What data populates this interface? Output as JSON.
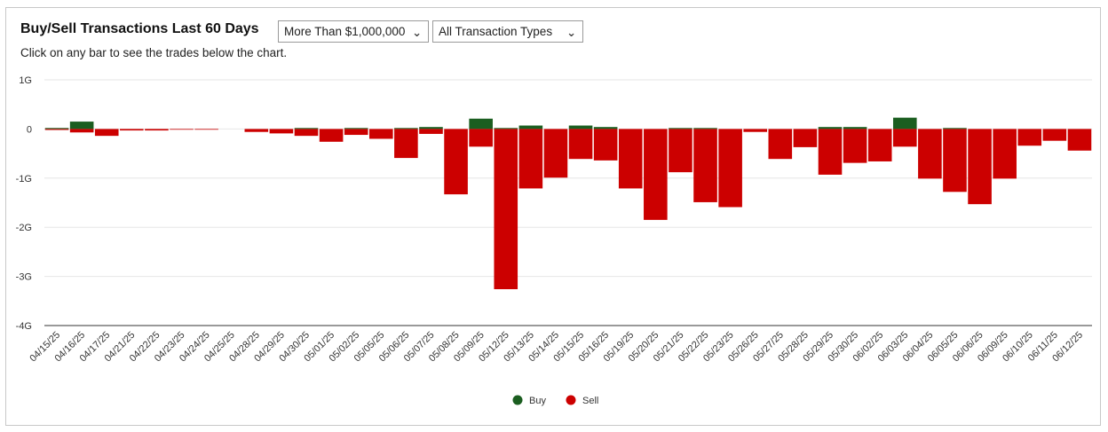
{
  "header": {
    "title": "Buy/Sell Transactions Last 60 Days",
    "subtitle": "Click on any bar to see the trades below the chart.",
    "amount_filter": "More Than $1,000,000",
    "type_filter": "All Transaction Types"
  },
  "colors": {
    "buy": "#1b5e20",
    "sell": "#cc0000",
    "grid": "#e6e6e6",
    "axis": "#333333"
  },
  "chart_data": {
    "type": "bar",
    "title": "Buy/Sell Transactions Last 60 Days",
    "xlabel": "",
    "ylabel": "",
    "ylim": [
      -4,
      1
    ],
    "yticks": [
      1,
      0,
      -1,
      -2,
      -3,
      -4
    ],
    "ytick_labels": [
      "1G",
      "0",
      "-1G",
      "-2G",
      "-3G",
      "-4G"
    ],
    "grid": true,
    "legend": "bottom-center",
    "categories": [
      "04/15/25",
      "04/16/25",
      "04/17/25",
      "04/21/25",
      "04/22/25",
      "04/23/25",
      "04/24/25",
      "04/25/25",
      "04/28/25",
      "04/29/25",
      "04/30/25",
      "05/01/25",
      "05/02/25",
      "05/05/25",
      "05/06/25",
      "05/07/25",
      "05/08/25",
      "05/09/25",
      "05/12/25",
      "05/13/25",
      "05/14/25",
      "05/15/25",
      "05/16/25",
      "05/19/25",
      "05/20/25",
      "05/21/25",
      "05/22/25",
      "05/23/25",
      "05/26/25",
      "05/27/25",
      "05/28/25",
      "05/29/25",
      "05/30/25",
      "06/02/25",
      "06/03/25",
      "06/04/25",
      "06/05/25",
      "06/06/25",
      "06/09/25",
      "06/10/25",
      "06/11/25",
      "06/12/25"
    ],
    "series": [
      {
        "name": "Buy",
        "values": [
          0.02,
          0.15,
          0,
          0,
          0,
          0,
          0,
          0,
          0,
          0,
          0.02,
          0,
          0.02,
          0,
          0.02,
          0.04,
          0,
          0.21,
          0.02,
          0.07,
          0,
          0.07,
          0.04,
          0,
          0,
          0.02,
          0.02,
          0,
          0,
          0,
          0,
          0.04,
          0.04,
          0,
          0.23,
          0,
          0.02,
          0,
          0,
          0,
          0,
          0
        ]
      },
      {
        "name": "Sell",
        "values": [
          -0.02,
          -0.07,
          -0.14,
          -0.03,
          -0.03,
          -0.01,
          -0.01,
          0,
          -0.06,
          -0.09,
          -0.14,
          -0.26,
          -0.12,
          -0.2,
          -0.59,
          -0.1,
          -1.33,
          -0.36,
          -3.26,
          -1.21,
          -0.99,
          -0.61,
          -0.64,
          -1.21,
          -1.85,
          -0.88,
          -1.49,
          -1.59,
          -0.06,
          -0.61,
          -0.37,
          -0.93,
          -0.69,
          -0.66,
          -0.36,
          -1.01,
          -1.28,
          -1.53,
          -1.01,
          -0.34,
          -0.24,
          -0.44
        ]
      }
    ]
  }
}
